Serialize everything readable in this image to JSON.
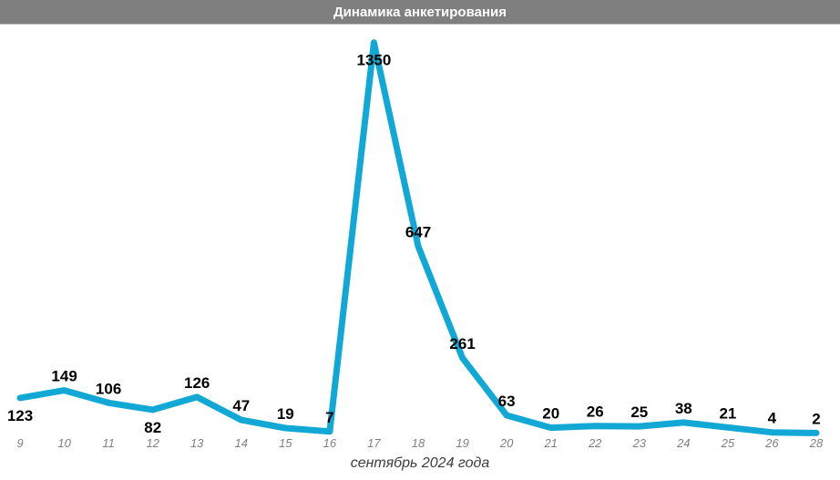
{
  "header": {
    "title": "Динамика анкетирования",
    "bg_color": "#7f7f7f",
    "text_color": "#ffffff"
  },
  "chart_data": {
    "type": "line",
    "title": "Динамика анкетирования",
    "categories": [
      "9",
      "10",
      "11",
      "12",
      "13",
      "14",
      "15",
      "16",
      "17",
      "18",
      "19",
      "20",
      "21",
      "22",
      "23",
      "24",
      "25",
      "26",
      "28"
    ],
    "values": [
      123,
      149,
      106,
      82,
      126,
      47,
      19,
      7,
      1350,
      647,
      261,
      63,
      20,
      26,
      25,
      38,
      21,
      4,
      2
    ],
    "xlabel": "сентябрь 2024 года",
    "ylabel": "",
    "ylim": [
      0,
      1412
    ],
    "grid": false,
    "legend": false,
    "axis_line": false,
    "line_color": "#12a8d6",
    "data_label_color": "#000000",
    "tick_label_color": "#808080",
    "xlabel_color": "#3d3d3d",
    "labels_below_categories": [
      "9",
      "12",
      "17"
    ]
  }
}
